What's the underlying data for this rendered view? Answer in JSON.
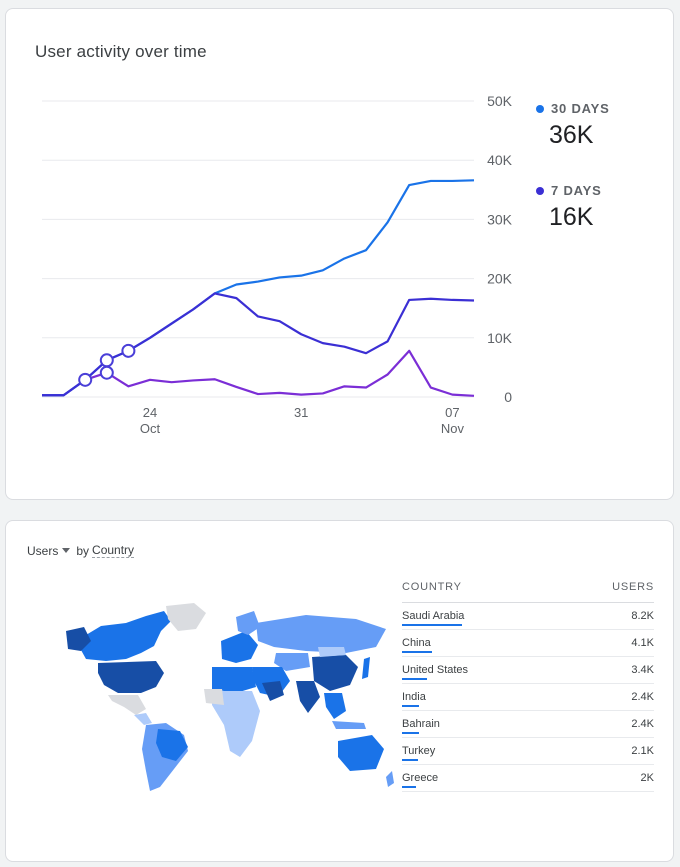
{
  "activity": {
    "title": "User activity over time",
    "legend": [
      {
        "label": "30 DAYS",
        "value": "36K",
        "color": "#1a73e8"
      },
      {
        "label": "7 DAYS",
        "value": "16K",
        "color": "#3b2fd4"
      }
    ]
  },
  "chart_data": {
    "type": "line",
    "title": "User activity over time",
    "y_ticks": [
      "50K",
      "40K",
      "30K",
      "20K",
      "10K",
      "0"
    ],
    "ylim": [
      0,
      50000
    ],
    "x_ticks": [
      {
        "day": 24,
        "label": "24",
        "month": "Oct"
      },
      {
        "day": 31,
        "label": "31",
        "month": ""
      },
      {
        "day": 38,
        "label": "07",
        "month": "Nov"
      }
    ],
    "x_days": [
      19,
      20,
      21,
      22,
      23,
      24,
      25,
      26,
      27,
      28,
      29,
      30,
      31,
      32,
      33,
      34,
      35,
      36,
      37,
      38,
      39
    ],
    "series": [
      {
        "name": "30 DAYS",
        "color": "#1a73e8",
        "values": [
          300,
          300,
          2900,
          6200,
          7800,
          10000,
          12400,
          14800,
          17500,
          19000,
          19500,
          20200,
          20500,
          21400,
          23400,
          24800,
          29500,
          35800,
          36500,
          36500,
          36600
        ]
      },
      {
        "name": "7 DAYS",
        "color": "#3b2fd4",
        "values": [
          300,
          300,
          2900,
          6200,
          7800,
          10000,
          12400,
          14800,
          17500,
          16700,
          13600,
          12800,
          10600,
          9100,
          8500,
          7400,
          9400,
          16400,
          16600,
          16400,
          16300
        ]
      },
      {
        "name": "",
        "color": "#7b2ed6",
        "values": [
          300,
          300,
          2900,
          4100,
          1800,
          2900,
          2500,
          2800,
          3000,
          1700,
          500,
          700,
          400,
          600,
          1800,
          1600,
          3800,
          7800,
          1600,
          400,
          200
        ]
      }
    ],
    "markers": [
      {
        "day": 21,
        "value": 2900
      },
      {
        "day": 22,
        "value": 6200
      },
      {
        "day": 22,
        "value": 4100
      },
      {
        "day": 23,
        "value": 7800
      }
    ],
    "grid": true
  },
  "geo": {
    "metric": "Users",
    "dimension_prefix": "by",
    "dimension": "Country",
    "col_country": "COUNTRY",
    "col_users": "USERS",
    "rows": [
      {
        "country": "Saudi Arabia",
        "users": "8.2K",
        "share": 1.0
      },
      {
        "country": "China",
        "users": "4.1K",
        "share": 0.5
      },
      {
        "country": "United States",
        "users": "3.4K",
        "share": 0.41
      },
      {
        "country": "India",
        "users": "2.4K",
        "share": 0.29
      },
      {
        "country": "Bahrain",
        "users": "2.4K",
        "share": 0.29
      },
      {
        "country": "Turkey",
        "users": "2.1K",
        "share": 0.26
      },
      {
        "country": "Greece",
        "users": "2K",
        "share": 0.24
      }
    ],
    "map_colors": {
      "dark": "#174ea6",
      "mid": "#1a73e8",
      "light": "#669df6",
      "pale": "#aecbfa",
      "none": "#dadce0"
    }
  }
}
